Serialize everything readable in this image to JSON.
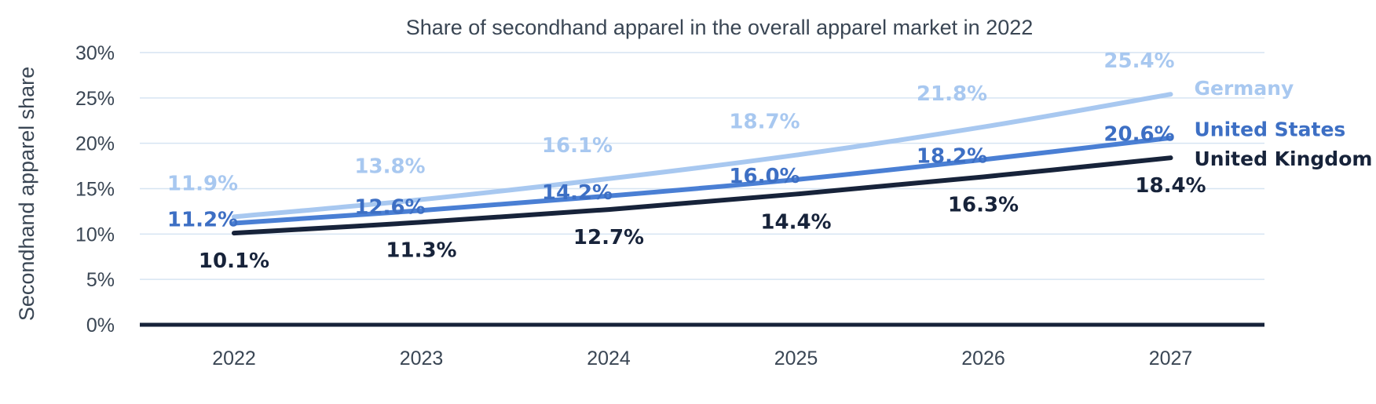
{
  "chart_data": {
    "type": "line",
    "title": "Share of secondhand apparel in the overall apparel market in 2022",
    "xlabel": "",
    "ylabel": "Secondhand apparel share",
    "categories": [
      "2022",
      "2023",
      "2024",
      "2025",
      "2026",
      "2027"
    ],
    "ylim": [
      0,
      30
    ],
    "yticks": [
      "0%",
      "5%",
      "10%",
      "15%",
      "20%",
      "25%",
      "30%"
    ],
    "grid": true,
    "legend": "inline-right",
    "series": [
      {
        "name": "Germany",
        "color": "#a8c8f0",
        "values": [
          11.9,
          13.8,
          16.1,
          18.7,
          21.8,
          25.4
        ],
        "labels": [
          "11.9%",
          "13.8%",
          "16.1%",
          "18.7%",
          "21.8%",
          "25.4%"
        ]
      },
      {
        "name": "United States",
        "color": "#4a7fd4",
        "label_color": "#3d6fc4",
        "values": [
          11.2,
          12.6,
          14.2,
          16.0,
          18.2,
          20.6
        ],
        "labels": [
          "11.2%",
          "12.6%",
          "14.2%",
          "16.0%",
          "18.2%",
          "20.6%"
        ]
      },
      {
        "name": "United Kingdom",
        "color": "#17233a",
        "values": [
          10.1,
          11.3,
          12.7,
          14.4,
          16.3,
          18.4
        ],
        "labels": [
          "10.1%",
          "11.3%",
          "12.7%",
          "14.4%",
          "16.3%",
          "18.4%"
        ]
      }
    ]
  }
}
